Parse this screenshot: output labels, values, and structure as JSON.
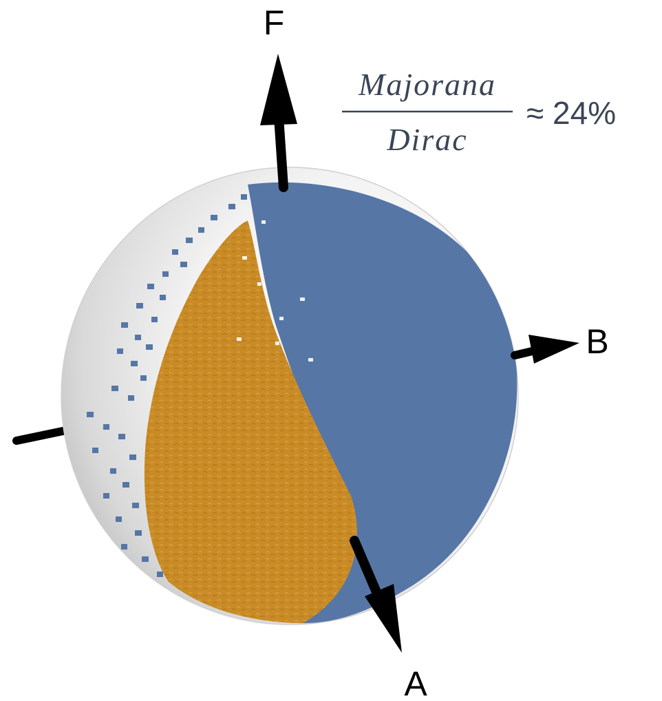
{
  "figure": {
    "axes": {
      "F": "F",
      "B": "B",
      "A": "A"
    },
    "ratio": {
      "numerator": "Majorana",
      "denominator": "Dirac",
      "value_text": "≈ 24%"
    },
    "colors": {
      "dirac_region": "#5676a6",
      "majorana_region": "#c98b26",
      "sphere": "#e9e9e9",
      "axis": "#000000",
      "text": "#3a4556"
    }
  }
}
